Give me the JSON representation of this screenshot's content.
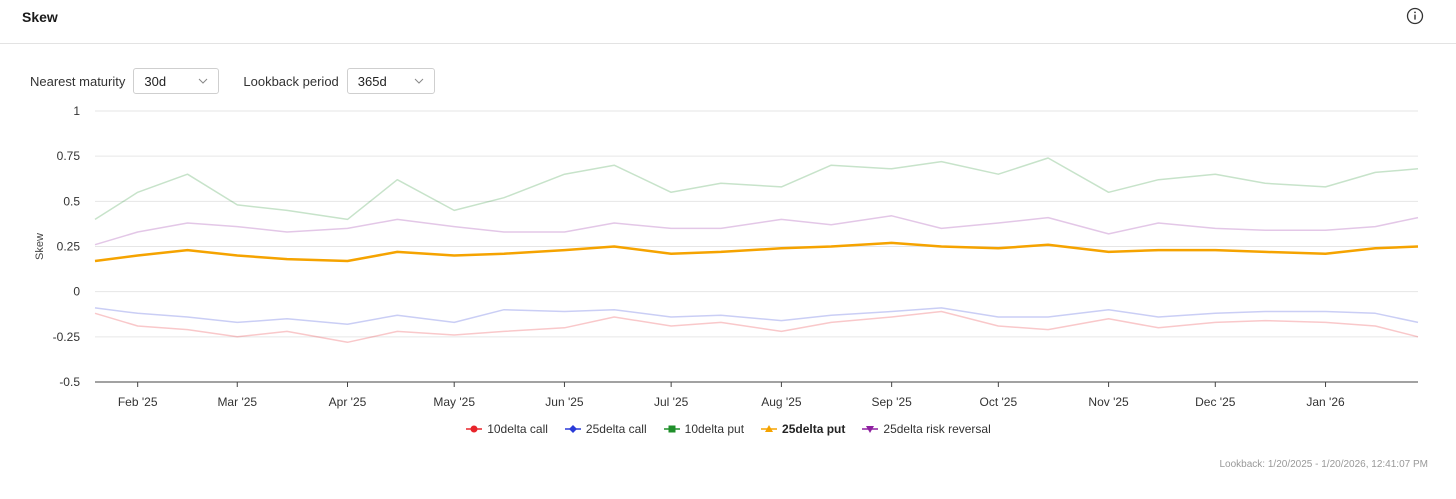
{
  "header": {
    "title": "Skew",
    "info_icon": "info-icon"
  },
  "controls": {
    "maturity_label": "Nearest maturity",
    "maturity_value": "30d",
    "lookback_label": "Lookback period",
    "lookback_value": "365d"
  },
  "footer": {
    "lookback_text": "Lookback: 1/20/2025 - 1/20/2026, 12:41:07 PM"
  },
  "chart_data": {
    "type": "line",
    "ylabel": "Skew",
    "ylim": [
      -0.5,
      1
    ],
    "yticks": [
      1,
      0.75,
      0.5,
      0.25,
      0,
      -0.25,
      -0.5
    ],
    "ytick_labels": [
      "1",
      "0.75",
      "0.5",
      "0.25",
      "0",
      "-0.25",
      "-0.5"
    ],
    "x_start": "2025-01-20",
    "x_end": "2026-01-27",
    "xticks": [
      {
        "date": "2025-02-01",
        "label": "Feb '25"
      },
      {
        "date": "2025-03-01",
        "label": "Mar '25"
      },
      {
        "date": "2025-04-01",
        "label": "Apr '25"
      },
      {
        "date": "2025-05-01",
        "label": "May '25"
      },
      {
        "date": "2025-06-01",
        "label": "Jun '25"
      },
      {
        "date": "2025-07-01",
        "label": "Jul '25"
      },
      {
        "date": "2025-08-01",
        "label": "Aug '25"
      },
      {
        "date": "2025-09-01",
        "label": "Sep '25"
      },
      {
        "date": "2025-10-01",
        "label": "Oct '25"
      },
      {
        "date": "2025-11-01",
        "label": "Nov '25"
      },
      {
        "date": "2025-12-01",
        "label": "Dec '25"
      },
      {
        "date": "2026-01-01",
        "label": "Jan '26"
      }
    ],
    "grid": true,
    "legend_position": "bottom-center",
    "series": [
      {
        "name": "10delta call",
        "color": "#e8242b",
        "highlighted": false,
        "values": [
          [
            "2025-01-20",
            -0.12
          ],
          [
            "2025-02-01",
            -0.19
          ],
          [
            "2025-02-15",
            -0.21
          ],
          [
            "2025-03-01",
            -0.25
          ],
          [
            "2025-03-15",
            -0.22
          ],
          [
            "2025-04-01",
            -0.28
          ],
          [
            "2025-04-15",
            -0.22
          ],
          [
            "2025-05-01",
            -0.24
          ],
          [
            "2025-05-15",
            -0.22
          ],
          [
            "2025-06-01",
            -0.2
          ],
          [
            "2025-06-15",
            -0.14
          ],
          [
            "2025-07-01",
            -0.19
          ],
          [
            "2025-07-15",
            -0.17
          ],
          [
            "2025-08-01",
            -0.22
          ],
          [
            "2025-08-15",
            -0.17
          ],
          [
            "2025-09-01",
            -0.14
          ],
          [
            "2025-09-15",
            -0.11
          ],
          [
            "2025-10-01",
            -0.19
          ],
          [
            "2025-10-15",
            -0.21
          ],
          [
            "2025-11-01",
            -0.15
          ],
          [
            "2025-11-15",
            -0.2
          ],
          [
            "2025-12-01",
            -0.17
          ],
          [
            "2025-12-15",
            -0.16
          ],
          [
            "2026-01-01",
            -0.17
          ],
          [
            "2026-01-15",
            -0.19
          ],
          [
            "2026-01-27",
            -0.25
          ]
        ]
      },
      {
        "name": "25delta call",
        "color": "#2a3bd8",
        "highlighted": false,
        "values": [
          [
            "2025-01-20",
            -0.09
          ],
          [
            "2025-02-01",
            -0.12
          ],
          [
            "2025-02-15",
            -0.14
          ],
          [
            "2025-03-01",
            -0.17
          ],
          [
            "2025-03-15",
            -0.15
          ],
          [
            "2025-04-01",
            -0.18
          ],
          [
            "2025-04-15",
            -0.13
          ],
          [
            "2025-05-01",
            -0.17
          ],
          [
            "2025-05-15",
            -0.1
          ],
          [
            "2025-06-01",
            -0.11
          ],
          [
            "2025-06-15",
            -0.1
          ],
          [
            "2025-07-01",
            -0.14
          ],
          [
            "2025-07-15",
            -0.13
          ],
          [
            "2025-08-01",
            -0.16
          ],
          [
            "2025-08-15",
            -0.13
          ],
          [
            "2025-09-01",
            -0.11
          ],
          [
            "2025-09-15",
            -0.09
          ],
          [
            "2025-10-01",
            -0.14
          ],
          [
            "2025-10-15",
            -0.14
          ],
          [
            "2025-11-01",
            -0.1
          ],
          [
            "2025-11-15",
            -0.14
          ],
          [
            "2025-12-01",
            -0.12
          ],
          [
            "2025-12-15",
            -0.11
          ],
          [
            "2026-01-01",
            -0.11
          ],
          [
            "2026-01-15",
            -0.12
          ],
          [
            "2026-01-27",
            -0.17
          ]
        ]
      },
      {
        "name": "10delta put",
        "color": "#1f8f2a",
        "highlighted": false,
        "values": [
          [
            "2025-01-20",
            0.4
          ],
          [
            "2025-02-01",
            0.55
          ],
          [
            "2025-02-15",
            0.65
          ],
          [
            "2025-03-01",
            0.48
          ],
          [
            "2025-03-15",
            0.45
          ],
          [
            "2025-04-01",
            0.4
          ],
          [
            "2025-04-15",
            0.62
          ],
          [
            "2025-05-01",
            0.45
          ],
          [
            "2025-05-15",
            0.52
          ],
          [
            "2025-06-01",
            0.65
          ],
          [
            "2025-06-15",
            0.7
          ],
          [
            "2025-07-01",
            0.55
          ],
          [
            "2025-07-15",
            0.6
          ],
          [
            "2025-08-01",
            0.58
          ],
          [
            "2025-08-15",
            0.7
          ],
          [
            "2025-09-01",
            0.68
          ],
          [
            "2025-09-15",
            0.72
          ],
          [
            "2025-10-01",
            0.65
          ],
          [
            "2025-10-15",
            0.74
          ],
          [
            "2025-11-01",
            0.55
          ],
          [
            "2025-11-15",
            0.62
          ],
          [
            "2025-12-01",
            0.65
          ],
          [
            "2025-12-15",
            0.6
          ],
          [
            "2026-01-01",
            0.58
          ],
          [
            "2026-01-15",
            0.66
          ],
          [
            "2026-01-27",
            0.68
          ]
        ]
      },
      {
        "name": "25delta put",
        "color": "#f5a300",
        "highlighted": true,
        "values": [
          [
            "2025-01-20",
            0.17
          ],
          [
            "2025-02-01",
            0.2
          ],
          [
            "2025-02-15",
            0.23
          ],
          [
            "2025-03-01",
            0.2
          ],
          [
            "2025-03-15",
            0.18
          ],
          [
            "2025-04-01",
            0.17
          ],
          [
            "2025-04-15",
            0.22
          ],
          [
            "2025-05-01",
            0.2
          ],
          [
            "2025-05-15",
            0.21
          ],
          [
            "2025-06-01",
            0.23
          ],
          [
            "2025-06-15",
            0.25
          ],
          [
            "2025-07-01",
            0.21
          ],
          [
            "2025-07-15",
            0.22
          ],
          [
            "2025-08-01",
            0.24
          ],
          [
            "2025-08-15",
            0.25
          ],
          [
            "2025-09-01",
            0.27
          ],
          [
            "2025-09-15",
            0.25
          ],
          [
            "2025-10-01",
            0.24
          ],
          [
            "2025-10-15",
            0.26
          ],
          [
            "2025-11-01",
            0.22
          ],
          [
            "2025-11-15",
            0.23
          ],
          [
            "2025-12-01",
            0.23
          ],
          [
            "2025-12-15",
            0.22
          ],
          [
            "2026-01-01",
            0.21
          ],
          [
            "2026-01-15",
            0.24
          ],
          [
            "2026-01-27",
            0.25
          ]
        ]
      },
      {
        "name": "25delta risk reversal",
        "color": "#8e1fa0",
        "highlighted": false,
        "values": [
          [
            "2025-01-20",
            0.26
          ],
          [
            "2025-02-01",
            0.33
          ],
          [
            "2025-02-15",
            0.38
          ],
          [
            "2025-03-01",
            0.36
          ],
          [
            "2025-03-15",
            0.33
          ],
          [
            "2025-04-01",
            0.35
          ],
          [
            "2025-04-15",
            0.4
          ],
          [
            "2025-05-01",
            0.36
          ],
          [
            "2025-05-15",
            0.33
          ],
          [
            "2025-06-01",
            0.33
          ],
          [
            "2025-06-15",
            0.38
          ],
          [
            "2025-07-01",
            0.35
          ],
          [
            "2025-07-15",
            0.35
          ],
          [
            "2025-08-01",
            0.4
          ],
          [
            "2025-08-15",
            0.37
          ],
          [
            "2025-09-01",
            0.42
          ],
          [
            "2025-09-15",
            0.35
          ],
          [
            "2025-10-01",
            0.38
          ],
          [
            "2025-10-15",
            0.41
          ],
          [
            "2025-11-01",
            0.32
          ],
          [
            "2025-11-15",
            0.38
          ],
          [
            "2025-12-01",
            0.35
          ],
          [
            "2025-12-15",
            0.34
          ],
          [
            "2026-01-01",
            0.34
          ],
          [
            "2026-01-15",
            0.36
          ],
          [
            "2026-01-27",
            0.41
          ]
        ]
      }
    ]
  }
}
